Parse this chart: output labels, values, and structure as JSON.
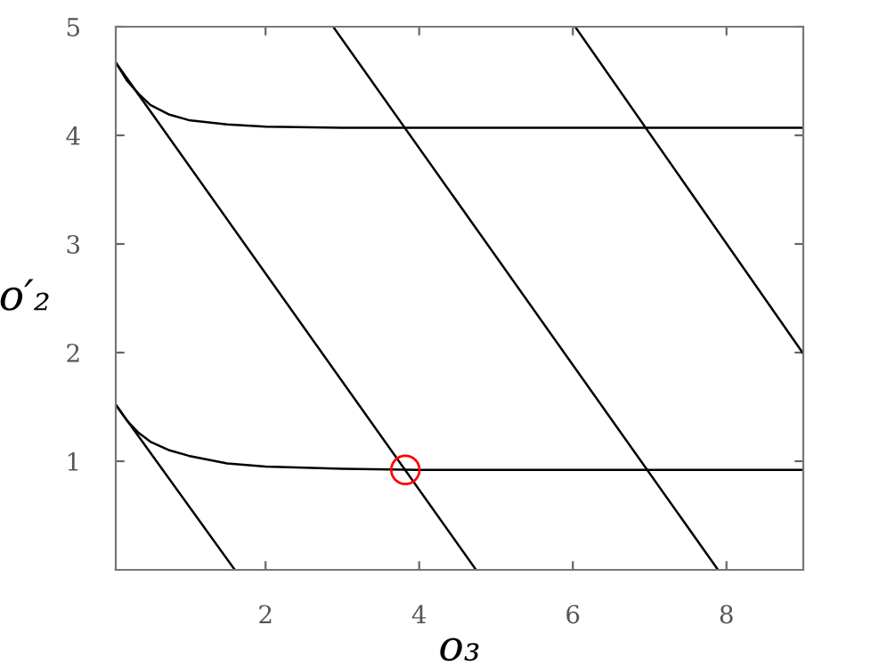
{
  "chart_data": {
    "type": "line",
    "xlabel": "o₃",
    "ylabel": "o′₂",
    "xlim": [
      0.05,
      9
    ],
    "ylim": [
      0,
      5
    ],
    "xticks": [
      2,
      4,
      6,
      8
    ],
    "yticks": [
      1,
      2,
      3,
      4,
      5
    ],
    "grid": false,
    "legend": false,
    "marker": "none",
    "line_style": "solid",
    "series": [
      {
        "color": "#000000",
        "x": [
          0.05,
          0.2,
          0.35,
          0.5,
          0.75,
          1.0,
          1.5,
          2,
          3,
          4,
          9
        ],
        "values": [
          4.67,
          4.5,
          4.38,
          4.28,
          4.19,
          4.14,
          4.1,
          4.08,
          4.07,
          4.07,
          4.07
        ]
      },
      {
        "color": "#000000",
        "x": [
          0.05,
          0.2,
          0.35,
          0.5,
          0.75,
          1.0,
          1.5,
          2,
          3,
          4,
          9
        ],
        "values": [
          1.52,
          1.37,
          1.26,
          1.18,
          1.1,
          1.05,
          0.98,
          0.95,
          0.93,
          0.92,
          0.92
        ]
      },
      {
        "color": "#000000",
        "x": [
          0.05,
          4.74
        ],
        "values": [
          4.67,
          0
        ]
      },
      {
        "color": "#000000",
        "x": [
          0.05,
          1.6
        ],
        "values": [
          1.52,
          0
        ]
      },
      {
        "color": "#000000",
        "x": [
          2.88,
          7.89
        ],
        "values": [
          5,
          0
        ]
      },
      {
        "color": "#000000",
        "x": [
          6.03,
          9
        ],
        "values": [
          5,
          1.99
        ]
      },
      {
        "type": "scatter",
        "marker": "circle",
        "color": "#ff0000",
        "x": [
          3.82
        ],
        "values": [
          0.92
        ]
      }
    ]
  }
}
